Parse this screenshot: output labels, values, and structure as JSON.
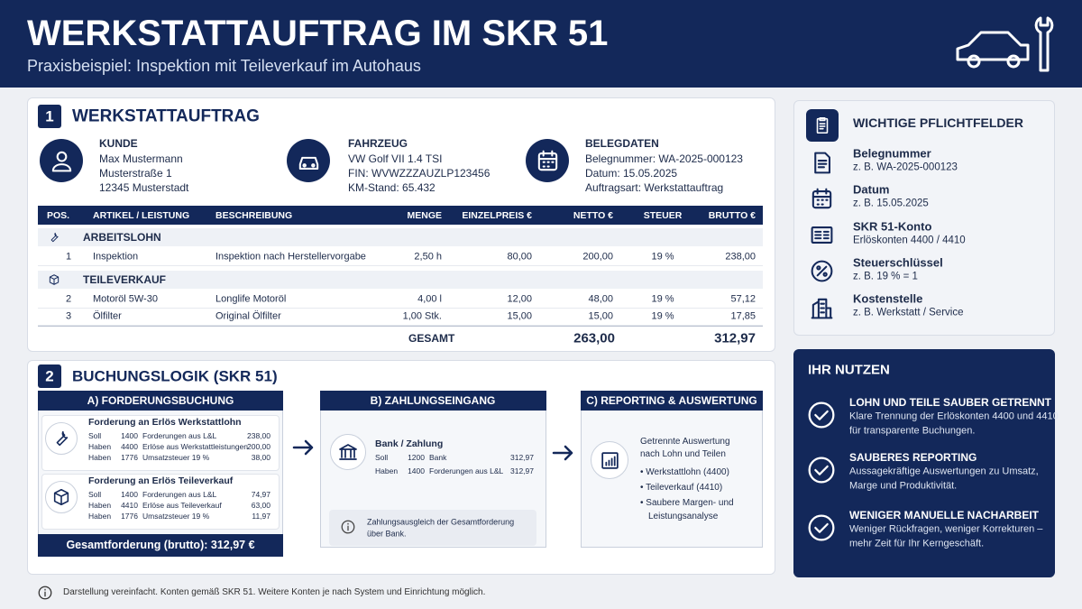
{
  "header": {
    "title": "WERKSTATTAUFTRAG IM SKR 51",
    "subtitle": "Praxisbeispiel: Inspektion mit Teileverkauf im Autohaus"
  },
  "order": {
    "number": "1",
    "title": "WERKSTATTAUFTRAG",
    "info": [
      {
        "label": "KUNDE",
        "lines": [
          "Max Mustermann",
          "Musterstraße 1",
          "12345 Musterstadt"
        ]
      },
      {
        "label": "FAHRZEUG",
        "lines": [
          "VW Golf VII 1.4 TSI",
          "FIN: WVWZZZAUZLP123456",
          "KM-Stand: 65.432"
        ]
      },
      {
        "label": "BELEGDATEN",
        "lines": [
          "Belegnummer: WA-2025-000123",
          "Datum: 15.05.2025",
          "Auftragsart: Werkstattauftrag"
        ]
      }
    ],
    "table": {
      "headers": [
        "POS.",
        "ARTIKEL / LEISTUNG",
        "BESCHREIBUNG",
        "MENGE",
        "EINZELPREIS €",
        "NETTO €",
        "STEUER",
        "BRUTTO €"
      ],
      "groups": [
        {
          "title": "ARBEITSLOHN",
          "rows": [
            [
              "1",
              "Inspektion",
              "Inspektion nach Herstellervorgabe",
              "2,50 h",
              "80,00",
              "200,00",
              "19 %",
              "238,00"
            ]
          ]
        },
        {
          "title": "TEILEVERKAUF",
          "rows": [
            [
              "2",
              "Motoröl 5W-30",
              "Longlife Motoröl",
              "4,00 l",
              "12,00",
              "48,00",
              "19 %",
              "57,12"
            ],
            [
              "3",
              "Ölfilter",
              "Original Ölfilter",
              "1,00 Stk.",
              "15,00",
              "15,00",
              "19 %",
              "17,85"
            ]
          ]
        }
      ],
      "total": {
        "label": "GESAMT",
        "netto": "263,00",
        "brutto": "312,97"
      }
    }
  },
  "booking": {
    "number": "2",
    "title": "BUCHUNGSLOGIK (SKR 51)",
    "a": {
      "title": "A)  FORDERUNGSBUCHUNG",
      "entries": [
        {
          "title": "Forderung an Erlös Werkstattlohn",
          "lines": [
            [
              "Soll",
              "1400",
              "Forderungen aus L&L",
              "238,00"
            ],
            [
              "Haben",
              "4400",
              "Erlöse aus Werkstattleistungen",
              "200,00"
            ],
            [
              "Haben",
              "1776",
              "Umsatzsteuer 19 %",
              "38,00"
            ]
          ]
        },
        {
          "title": "Forderung an Erlös Teileverkauf",
          "lines": [
            [
              "Soll",
              "1400",
              "Forderungen aus L&L",
              "74,97"
            ],
            [
              "Haben",
              "4410",
              "Erlöse aus Teileverkauf",
              "63,00"
            ],
            [
              "Haben",
              "1776",
              "Umsatzsteuer 19 %",
              "11,97"
            ]
          ]
        }
      ],
      "footer": "Gesamtforderung (brutto): 312,97 €"
    },
    "b": {
      "title": "B)  ZAHLUNGSEINGANG",
      "entry": {
        "title": "Bank / Zahlung",
        "lines": [
          [
            "Soll",
            "1200",
            "Bank",
            "312,97"
          ],
          [
            "Haben",
            "1400",
            "Forderungen aus L&L",
            "312,97"
          ]
        ]
      },
      "note": [
        "Zahlungsausgleich der Gesamtforderung",
        "über Bank."
      ]
    },
    "c": {
      "title": "C)  REPORTING & AUSWERTUNG",
      "text": [
        "Getrennte Auswertung",
        "nach Lohn und Teilen"
      ],
      "bullets": [
        [
          "• Werkstattlohn (4400)"
        ],
        [
          "• Teileverkauf (4410)"
        ],
        [
          "• Saubere Margen- und",
          "Leistungsanalyse"
        ]
      ]
    }
  },
  "fields": {
    "title": "WICHTIGE PFLICHTFELDER",
    "items": [
      {
        "title": "Belegnummer",
        "text": "z. B. WA-2025-000123"
      },
      {
        "title": "Datum",
        "text": "z. B. 15.05.2025"
      },
      {
        "title": "SKR 51-Konto",
        "text": "Erlöskonten 4400 / 4410"
      },
      {
        "title": "Steuerschlüssel",
        "text": "z. B. 19 % = 1"
      },
      {
        "title": "Kostenstelle",
        "text": "z. B. Werkstatt / Service"
      }
    ]
  },
  "benefits": {
    "title": "IHR NUTZEN",
    "items": [
      {
        "title": "LOHN UND TEILE SAUBER GETRENNT",
        "text": [
          "Klare Trennung der Erlöskonten 4400 und 4410",
          "für transparente Buchungen."
        ]
      },
      {
        "title": "SAUBERES REPORTING",
        "text": [
          "Aussagekräftige Auswertungen zu Umsatz,",
          "Marge und Produktivität."
        ]
      },
      {
        "title": "WENIGER MANUELLE NACHARBEIT",
        "text": [
          "Weniger Rückfragen, weniger Korrekturen –",
          "mehr Zeit für Ihr Kerngeschäft."
        ]
      }
    ]
  },
  "footer": "Darstellung vereinfacht. Konten gemäß SKR 51. Weitere Konten je nach System und Einrichtung möglich."
}
